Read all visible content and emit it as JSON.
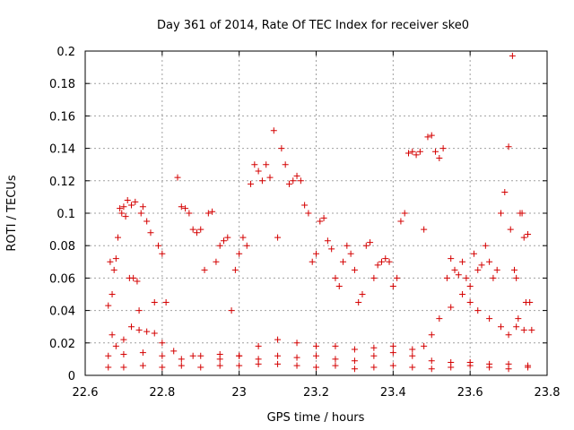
{
  "chart_data": {
    "type": "scatter",
    "title": "Day 361 of 2014, Rate Of TEC Index for receiver ske0",
    "xlabel": "GPS time / hours",
    "ylabel": "ROTI / TECUs",
    "xlim": [
      22.6,
      23.8
    ],
    "ylim": [
      0,
      0.2
    ],
    "grid": true,
    "legend": "none",
    "marker": "plus",
    "x_ticks": [
      "22.6",
      "22.8",
      "23",
      "23.2",
      "23.4",
      "23.6",
      "23.8"
    ],
    "y_ticks": [
      "0",
      "0.02",
      "0.04",
      "0.06",
      "0.08",
      "0.1",
      "0.12",
      "0.14",
      "0.16",
      "0.18",
      "0.2"
    ],
    "series": [
      {
        "name": "ske0",
        "color": "#d40000",
        "points": [
          [
            22.66,
            0.043
          ],
          [
            22.665,
            0.07
          ],
          [
            22.67,
            0.05
          ],
          [
            22.675,
            0.065
          ],
          [
            22.68,
            0.072
          ],
          [
            22.685,
            0.085
          ],
          [
            22.69,
            0.103
          ],
          [
            22.695,
            0.1
          ],
          [
            22.7,
            0.104
          ],
          [
            22.705,
            0.098
          ],
          [
            22.71,
            0.108
          ],
          [
            22.715,
            0.06
          ],
          [
            22.72,
            0.105
          ],
          [
            22.725,
            0.06
          ],
          [
            22.73,
            0.107
          ],
          [
            22.735,
            0.058
          ],
          [
            22.74,
            0.04
          ],
          [
            22.745,
            0.1
          ],
          [
            22.75,
            0.104
          ],
          [
            22.76,
            0.095
          ],
          [
            22.77,
            0.088
          ],
          [
            22.78,
            0.045
          ],
          [
            22.79,
            0.08
          ],
          [
            22.8,
            0.075
          ],
          [
            22.81,
            0.045
          ],
          [
            22.84,
            0.122
          ],
          [
            22.85,
            0.104
          ],
          [
            22.86,
            0.103
          ],
          [
            22.87,
            0.1
          ],
          [
            22.88,
            0.09
          ],
          [
            22.89,
            0.088
          ],
          [
            22.9,
            0.09
          ],
          [
            22.91,
            0.065
          ],
          [
            22.92,
            0.1
          ],
          [
            22.93,
            0.101
          ],
          [
            22.94,
            0.07
          ],
          [
            22.95,
            0.08
          ],
          [
            22.96,
            0.083
          ],
          [
            22.97,
            0.085
          ],
          [
            22.98,
            0.04
          ],
          [
            22.99,
            0.065
          ],
          [
            23.0,
            0.075
          ],
          [
            23.01,
            0.085
          ],
          [
            23.02,
            0.08
          ],
          [
            23.03,
            0.118
          ],
          [
            23.04,
            0.13
          ],
          [
            23.05,
            0.126
          ],
          [
            23.06,
            0.12
          ],
          [
            23.07,
            0.13
          ],
          [
            23.08,
            0.122
          ],
          [
            23.09,
            0.151
          ],
          [
            23.1,
            0.085
          ],
          [
            23.11,
            0.14
          ],
          [
            23.12,
            0.13
          ],
          [
            23.13,
            0.118
          ],
          [
            23.14,
            0.12
          ],
          [
            23.15,
            0.123
          ],
          [
            23.16,
            0.12
          ],
          [
            23.17,
            0.105
          ],
          [
            23.18,
            0.1
          ],
          [
            23.19,
            0.07
          ],
          [
            23.2,
            0.075
          ],
          [
            23.21,
            0.095
          ],
          [
            23.22,
            0.097
          ],
          [
            23.23,
            0.083
          ],
          [
            23.24,
            0.078
          ],
          [
            23.25,
            0.06
          ],
          [
            23.26,
            0.055
          ],
          [
            23.27,
            0.07
          ],
          [
            23.28,
            0.08
          ],
          [
            23.29,
            0.075
          ],
          [
            23.3,
            0.065
          ],
          [
            23.31,
            0.045
          ],
          [
            23.32,
            0.05
          ],
          [
            23.33,
            0.08
          ],
          [
            23.34,
            0.082
          ],
          [
            23.35,
            0.06
          ],
          [
            23.36,
            0.068
          ],
          [
            23.37,
            0.07
          ],
          [
            23.38,
            0.072
          ],
          [
            23.39,
            0.07
          ],
          [
            23.4,
            0.055
          ],
          [
            23.41,
            0.06
          ],
          [
            23.42,
            0.095
          ],
          [
            23.43,
            0.1
          ],
          [
            23.44,
            0.137
          ],
          [
            23.45,
            0.138
          ],
          [
            23.46,
            0.136
          ],
          [
            23.47,
            0.138
          ],
          [
            23.48,
            0.09
          ],
          [
            23.49,
            0.147
          ],
          [
            23.5,
            0.148
          ],
          [
            23.51,
            0.138
          ],
          [
            23.52,
            0.134
          ],
          [
            23.53,
            0.14
          ],
          [
            23.54,
            0.06
          ],
          [
            23.55,
            0.072
          ],
          [
            23.56,
            0.065
          ],
          [
            23.57,
            0.062
          ],
          [
            23.58,
            0.07
          ],
          [
            23.59,
            0.06
          ],
          [
            23.6,
            0.055
          ],
          [
            23.61,
            0.075
          ],
          [
            23.62,
            0.065
          ],
          [
            23.63,
            0.068
          ],
          [
            23.64,
            0.08
          ],
          [
            23.65,
            0.07
          ],
          [
            23.66,
            0.06
          ],
          [
            23.67,
            0.065
          ],
          [
            23.68,
            0.1
          ],
          [
            23.69,
            0.113
          ],
          [
            23.7,
            0.141
          ],
          [
            23.705,
            0.09
          ],
          [
            23.71,
            0.197
          ],
          [
            23.715,
            0.065
          ],
          [
            23.72,
            0.06
          ],
          [
            23.725,
            0.035
          ],
          [
            23.73,
            0.1
          ],
          [
            23.735,
            0.1
          ],
          [
            23.74,
            0.085
          ],
          [
            23.745,
            0.045
          ],
          [
            23.75,
            0.087
          ],
          [
            23.755,
            0.045
          ],
          [
            23.76,
            0.028
          ],
          [
            22.67,
            0.025
          ],
          [
            22.68,
            0.018
          ],
          [
            22.7,
            0.022
          ],
          [
            22.72,
            0.03
          ],
          [
            22.74,
            0.028
          ],
          [
            22.76,
            0.027
          ],
          [
            22.78,
            0.026
          ],
          [
            22.8,
            0.02
          ],
          [
            22.83,
            0.015
          ],
          [
            22.88,
            0.012
          ],
          [
            22.95,
            0.01
          ],
          [
            23.0,
            0.012
          ],
          [
            23.05,
            0.018
          ],
          [
            23.1,
            0.022
          ],
          [
            23.15,
            0.02
          ],
          [
            23.2,
            0.018
          ],
          [
            23.25,
            0.018
          ],
          [
            23.3,
            0.016
          ],
          [
            23.35,
            0.017
          ],
          [
            23.4,
            0.018
          ],
          [
            23.45,
            0.016
          ],
          [
            23.48,
            0.018
          ],
          [
            23.5,
            0.025
          ],
          [
            23.52,
            0.035
          ],
          [
            23.55,
            0.042
          ],
          [
            23.58,
            0.05
          ],
          [
            23.6,
            0.045
          ],
          [
            23.62,
            0.04
          ],
          [
            23.65,
            0.035
          ],
          [
            23.68,
            0.03
          ],
          [
            23.7,
            0.025
          ],
          [
            23.72,
            0.03
          ],
          [
            23.74,
            0.028
          ],
          [
            22.66,
            0.012
          ],
          [
            22.7,
            0.013
          ],
          [
            22.75,
            0.014
          ],
          [
            22.8,
            0.012
          ],
          [
            22.85,
            0.01
          ],
          [
            22.9,
            0.012
          ],
          [
            22.95,
            0.013
          ],
          [
            23.0,
            0.012
          ],
          [
            23.05,
            0.01
          ],
          [
            23.1,
            0.012
          ],
          [
            23.15,
            0.011
          ],
          [
            23.2,
            0.012
          ],
          [
            23.25,
            0.01
          ],
          [
            23.3,
            0.009
          ],
          [
            23.35,
            0.012
          ],
          [
            23.4,
            0.014
          ],
          [
            23.45,
            0.012
          ],
          [
            23.5,
            0.009
          ],
          [
            23.55,
            0.008
          ],
          [
            23.6,
            0.008
          ],
          [
            23.65,
            0.007
          ],
          [
            23.7,
            0.007
          ],
          [
            23.75,
            0.006
          ],
          [
            22.66,
            0.005
          ],
          [
            22.7,
            0.005
          ],
          [
            22.75,
            0.006
          ],
          [
            22.8,
            0.005
          ],
          [
            22.85,
            0.006
          ],
          [
            22.9,
            0.005
          ],
          [
            22.95,
            0.006
          ],
          [
            23.0,
            0.006
          ],
          [
            23.05,
            0.007
          ],
          [
            23.1,
            0.007
          ],
          [
            23.15,
            0.006
          ],
          [
            23.2,
            0.005
          ],
          [
            23.25,
            0.006
          ],
          [
            23.3,
            0.004
          ],
          [
            23.35,
            0.005
          ],
          [
            23.4,
            0.006
          ],
          [
            23.45,
            0.005
          ],
          [
            23.5,
            0.004
          ],
          [
            23.55,
            0.005
          ],
          [
            23.6,
            0.006
          ],
          [
            23.65,
            0.005
          ],
          [
            23.7,
            0.004
          ],
          [
            23.75,
            0.005
          ]
        ]
      }
    ]
  }
}
